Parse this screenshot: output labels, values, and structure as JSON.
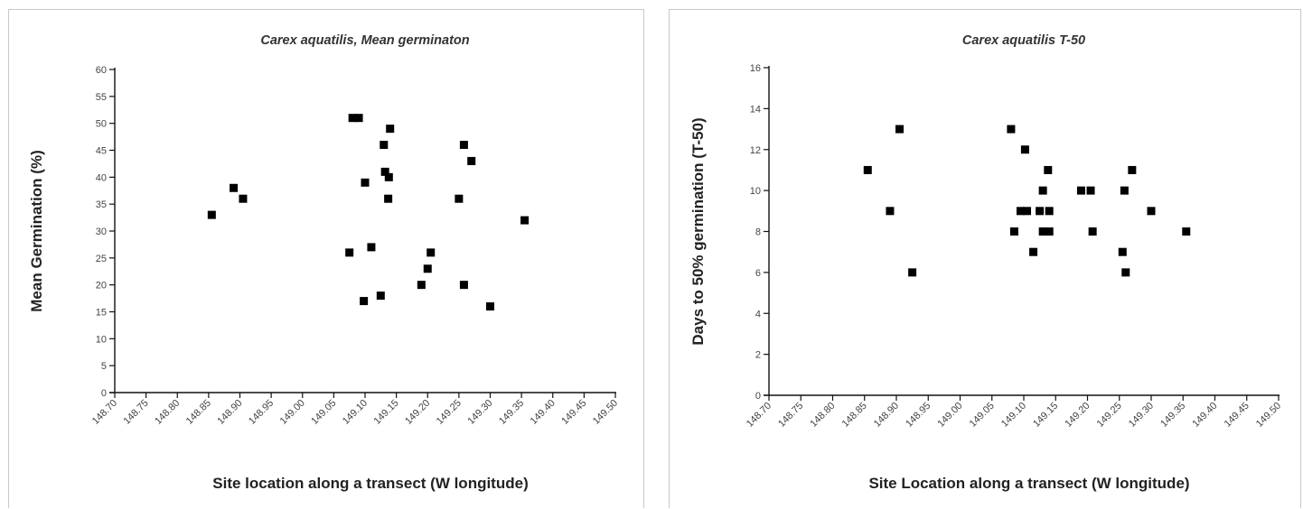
{
  "chart_data": [
    {
      "type": "scatter",
      "title": "Carex aquatilis,  Mean germinaton",
      "xlabel": "Site location along a transect (W longitude)",
      "ylabel": "Mean Germination (%)",
      "xlim": [
        148.7,
        149.5
      ],
      "ylim": [
        0,
        60
      ],
      "xticks": [
        "148.70",
        "148.75",
        "148.80",
        "148.85",
        "148.90",
        "148.95",
        "149.00",
        "149.05",
        "149.10",
        "149.15",
        "149.20",
        "149.25",
        "149.30",
        "149.35",
        "149.40",
        "149.45",
        "149.50"
      ],
      "yticks": [
        "0",
        "5",
        "10",
        "15",
        "20",
        "25",
        "30",
        "35",
        "40",
        "45",
        "50",
        "55",
        "60"
      ],
      "series": [
        {
          "points": [
            [
              148.855,
              33
            ],
            [
              148.89,
              38
            ],
            [
              148.905,
              36
            ],
            [
              149.08,
              51
            ],
            [
              149.09,
              51
            ],
            [
              149.1,
              39
            ],
            [
              149.098,
              17
            ],
            [
              149.075,
              26
            ],
            [
              149.11,
              27
            ],
            [
              149.125,
              18
            ],
            [
              149.13,
              46
            ],
            [
              149.132,
              41
            ],
            [
              149.138,
              40
            ],
            [
              149.14,
              49
            ],
            [
              149.137,
              36
            ],
            [
              149.19,
              20
            ],
            [
              149.2,
              23
            ],
            [
              149.205,
              26
            ],
            [
              149.25,
              36
            ],
            [
              149.258,
              46
            ],
            [
              149.258,
              20
            ],
            [
              149.27,
              43
            ],
            [
              149.3,
              16
            ],
            [
              149.355,
              32
            ]
          ]
        }
      ]
    },
    {
      "type": "scatter",
      "title": "Carex aquatilis  T-50",
      "xlabel": "Site Location along a transect (W longitude)",
      "ylabel": "Days to  50% germination (T-50)",
      "xlim": [
        148.7,
        149.5
      ],
      "ylim": [
        0,
        16
      ],
      "xticks": [
        "148.70",
        "148.75",
        "148.80",
        "148.85",
        "148.90",
        "148.95",
        "149.00",
        "149.05",
        "149.10",
        "149.15",
        "149.20",
        "149.25",
        "149.30",
        "149.35",
        "149.40",
        "149.45",
        "149.50"
      ],
      "yticks": [
        "0",
        "2",
        "4",
        "6",
        "8",
        "10",
        "12",
        "14",
        "16"
      ],
      "series": [
        {
          "points": [
            [
              148.855,
              11
            ],
            [
              148.89,
              9
            ],
            [
              148.905,
              13
            ],
            [
              148.925,
              6
            ],
            [
              149.08,
              13
            ],
            [
              149.085,
              8
            ],
            [
              149.095,
              9
            ],
            [
              149.105,
              9
            ],
            [
              149.102,
              12
            ],
            [
              149.115,
              7
            ],
            [
              149.125,
              9
            ],
            [
              149.13,
              10
            ],
            [
              149.13,
              8
            ],
            [
              149.138,
              11
            ],
            [
              149.14,
              8
            ],
            [
              149.14,
              9
            ],
            [
              149.19,
              10
            ],
            [
              149.205,
              10
            ],
            [
              149.208,
              8
            ],
            [
              149.255,
              7
            ],
            [
              149.258,
              10
            ],
            [
              149.26,
              6
            ],
            [
              149.27,
              11
            ],
            [
              149.3,
              9
            ],
            [
              149.355,
              8
            ]
          ]
        }
      ]
    }
  ]
}
